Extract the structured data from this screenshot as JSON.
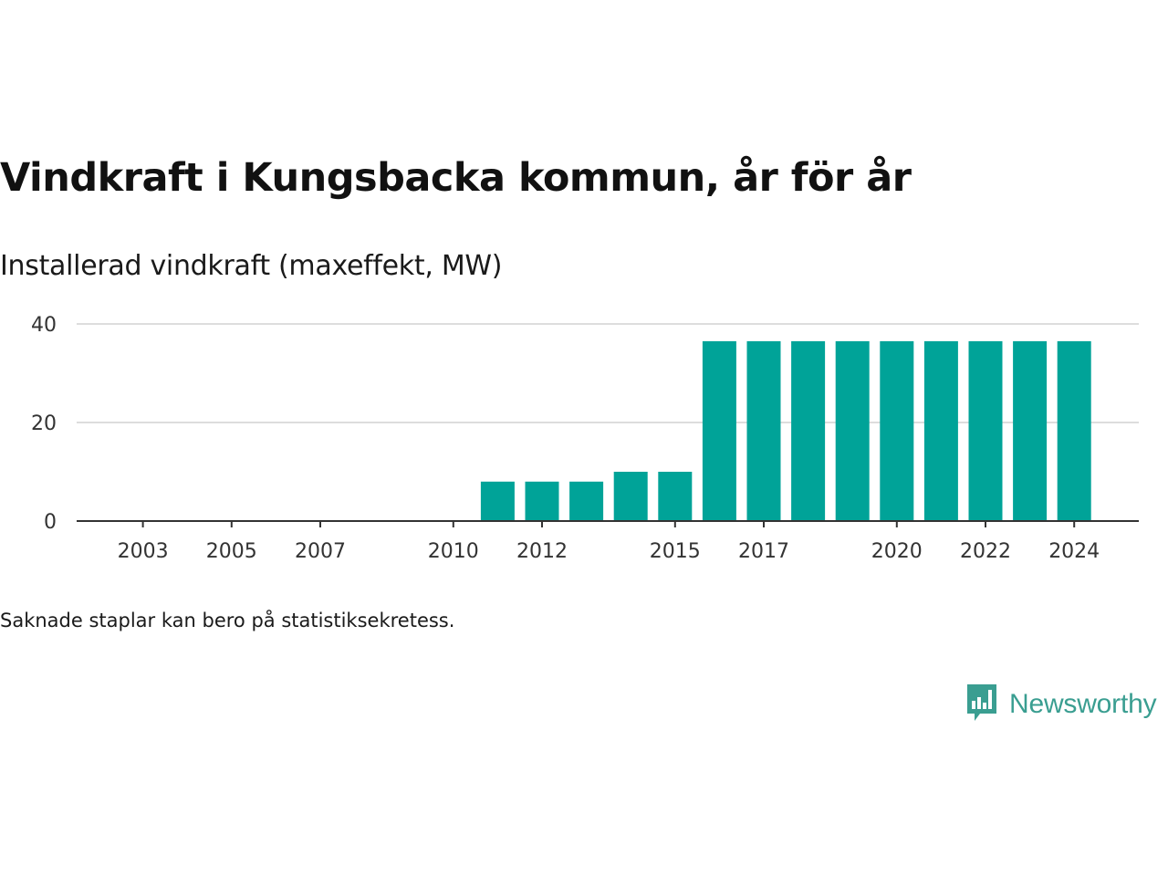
{
  "title": "Vindkraft i Kungsbacka kommun, år för år",
  "subtitle": "Installerad vindkraft (maxeffekt, MW)",
  "footnote": "Saknade staplar kan bero på statistiksekretess.",
  "brand": {
    "name": "Newsworthy",
    "icon": "newsworthy-logo-icon",
    "color": "#3a9e91"
  },
  "chart_data": {
    "type": "bar",
    "title": "Vindkraft i Kungsbacka kommun, år för år",
    "ylabel": "Installerad vindkraft (maxeffekt, MW)",
    "xlabel": "",
    "ylim": [
      0,
      40
    ],
    "yticks": [
      0,
      20,
      40
    ],
    "xticks": [
      2003,
      2005,
      2007,
      2010,
      2012,
      2015,
      2017,
      2020,
      2022,
      2024
    ],
    "grid": true,
    "bar_color": "#00a398",
    "categories": [
      2002,
      2003,
      2004,
      2005,
      2006,
      2007,
      2008,
      2009,
      2010,
      2011,
      2012,
      2013,
      2014,
      2015,
      2016,
      2017,
      2018,
      2019,
      2020,
      2021,
      2022,
      2023,
      2024
    ],
    "values": [
      0,
      0,
      0,
      0,
      0,
      0,
      0,
      0,
      0,
      8,
      8,
      8,
      10,
      10,
      36.5,
      36.5,
      36.5,
      36.5,
      36.5,
      36.5,
      36.5,
      36.5,
      36.5
    ]
  }
}
